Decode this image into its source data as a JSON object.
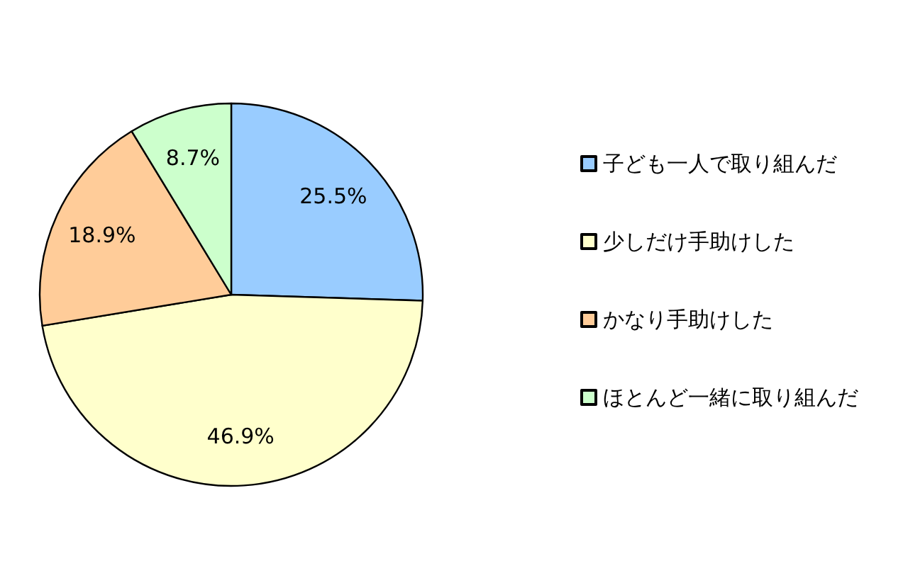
{
  "chart_data": {
    "type": "pie",
    "categories": [
      "子ども一人で取り組んだ",
      "少しだけ手助けした",
      "かなり手助けした",
      "ほとんど一緒に取り組んだ"
    ],
    "values": [
      25.5,
      46.9,
      18.9,
      8.7
    ],
    "value_labels": [
      "25.5%",
      "46.9%",
      "18.9%",
      "8.7%"
    ],
    "colors": [
      "#99ccff",
      "#ffffcc",
      "#ffcc99",
      "#ccffcc"
    ],
    "legend": "right"
  }
}
